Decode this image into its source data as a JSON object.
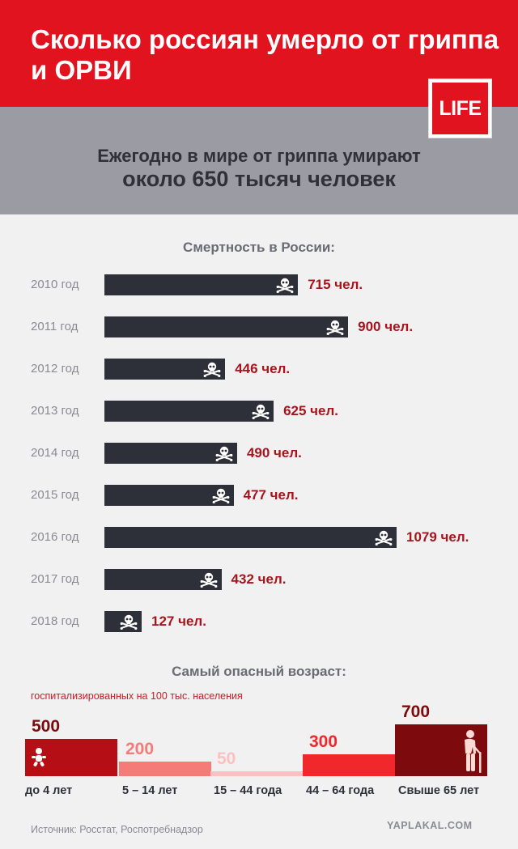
{
  "header": {
    "title": "Сколько россиян умерло от гриппа и ОРВИ",
    "logo_text": "LIFE",
    "world_line1": "Ежегодно в мире от гриппа умирают",
    "world_line2": "около 650 тысяч человек"
  },
  "chart_data": [
    {
      "type": "bar",
      "title": "Смертность в России:",
      "categories": [
        "2010 год",
        "2011 год",
        "2012 год",
        "2013 год",
        "2014 год",
        "2015 год",
        "2016 год",
        "2017 год",
        "2018 год"
      ],
      "values": [
        715,
        900,
        446,
        625,
        490,
        477,
        1079,
        432,
        127
      ],
      "value_labels": [
        "715 чел.",
        "900 чел.",
        "446 чел.",
        "625 чел.",
        "490 чел.",
        "477 чел.",
        "1079 чел.",
        "432 чел.",
        "127 чел."
      ],
      "orientation": "horizontal",
      "grid": false
    },
    {
      "type": "bar",
      "title": "Самый опасный возраст:",
      "subtitle": "госпитализированных на 100 тыс. населения",
      "categories": [
        "до 4 лет",
        "5 – 14 лет",
        "15 – 44 года",
        "44 – 64 года",
        "Свыше 65 лет"
      ],
      "values": [
        500,
        200,
        50,
        300,
        700
      ],
      "value_labels": [
        "500",
        "200",
        "50",
        "300",
        "700"
      ],
      "colors": [
        "#b50e15",
        "#f57b79",
        "#fbc1c1",
        "#f0282c",
        "#7d0a0c"
      ],
      "label_colors": [
        "#7d0a0c",
        "#f57b79",
        "#fbc1c1",
        "#f0282c",
        "#7d0a0c"
      ],
      "grid": false
    }
  ],
  "footer": {
    "source": "Источник: Росстат, Роспотребнадзор",
    "watermark": "YAPLAKAL.COM"
  }
}
